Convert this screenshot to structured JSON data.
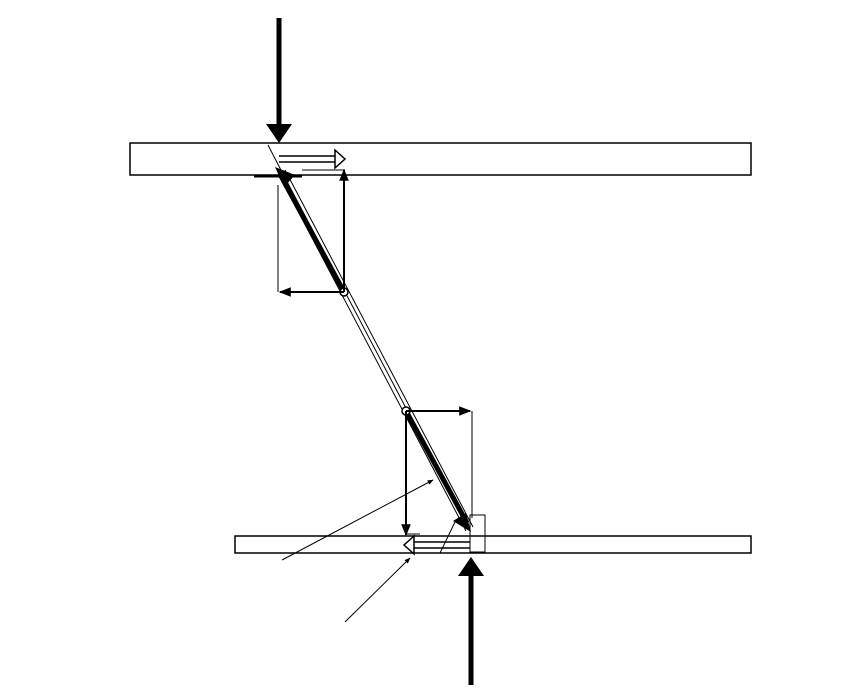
{
  "diagram": {
    "description_visible_text": [],
    "colors": {
      "stroke": "#000000",
      "fill": "#ffffff"
    }
  }
}
